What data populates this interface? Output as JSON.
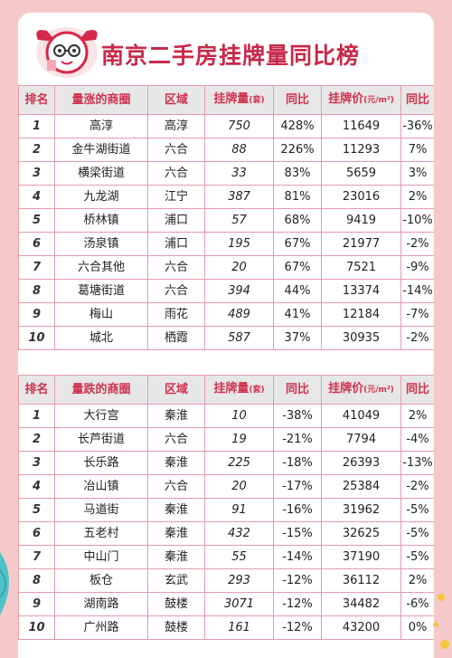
{
  "title": "南京二手房挂牌量同比榜",
  "headers_up": {
    "rank": "排名",
    "area": "量涨的商圈",
    "district": "区域",
    "listings": "挂牌量",
    "listings_unit": "(套)",
    "yoy": "同比",
    "price": "挂牌价",
    "price_unit": "(元/m²)",
    "price_yoy": "同比"
  },
  "headers_down": {
    "rank": "排名",
    "area": "量跌的商圈",
    "district": "区域",
    "listings": "挂牌量",
    "listings_unit": "(套)",
    "yoy": "同比",
    "price": "挂牌价",
    "price_unit": "(元/m²)",
    "price_yoy": "同比"
  },
  "rows_up": [
    [
      "1",
      "高淳",
      "高淳",
      "750",
      "428%",
      "11649",
      "-36%"
    ],
    [
      "2",
      "金牛湖街道",
      "六合",
      "88",
      "226%",
      "11293",
      "7%"
    ],
    [
      "3",
      "横梁街道",
      "六合",
      "33",
      "83%",
      "5659",
      "3%"
    ],
    [
      "4",
      "九龙湖",
      "江宁",
      "387",
      "81%",
      "23016",
      "2%"
    ],
    [
      "5",
      "桥林镇",
      "浦口",
      "57",
      "68%",
      "9419",
      "-10%"
    ],
    [
      "6",
      "汤泉镇",
      "浦口",
      "195",
      "67%",
      "21977",
      "-2%"
    ],
    [
      "7",
      "六合其他",
      "六合",
      "20",
      "67%",
      "7521",
      "-9%"
    ],
    [
      "8",
      "葛塘街道",
      "六合",
      "394",
      "44%",
      "13374",
      "-14%"
    ],
    [
      "9",
      "梅山",
      "雨花",
      "489",
      "41%",
      "12184",
      "-7%"
    ],
    [
      "10",
      "城北",
      "栖霞",
      "587",
      "37%",
      "30935",
      "-2%"
    ]
  ],
  "rows_down": [
    [
      "1",
      "大行宫",
      "秦淮",
      "10",
      "-38%",
      "41049",
      "2%"
    ],
    [
      "2",
      "长芦街道",
      "六合",
      "19",
      "-21%",
      "7794",
      "-4%"
    ],
    [
      "3",
      "长乐路",
      "秦淮",
      "225",
      "-18%",
      "26393",
      "-13%"
    ],
    [
      "4",
      "冶山镇",
      "六合",
      "20",
      "-17%",
      "25384",
      "-2%"
    ],
    [
      "5",
      "马道街",
      "秦淮",
      "91",
      "-16%",
      "31962",
      "-5%"
    ],
    [
      "6",
      "五老村",
      "秦淮",
      "432",
      "-15%",
      "32625",
      "-5%"
    ],
    [
      "7",
      "中山门",
      "秦淮",
      "55",
      "-14%",
      "37190",
      "-5%"
    ],
    [
      "8",
      "板仓",
      "玄武",
      "293",
      "-12%",
      "36112",
      "2%"
    ],
    [
      "9",
      "湖南路",
      "鼓楼",
      "3071",
      "-12%",
      "34482",
      "-6%"
    ],
    [
      "10",
      "广州路",
      "鼓楼",
      "161",
      "-12%",
      "43200",
      "0%"
    ]
  ],
  "colors": {
    "accent": "#c8294a",
    "border": "#e89aa8",
    "header_bg": "#e7e7e7",
    "page_bg": "#f5c9c9"
  },
  "icons": {
    "mascot": "cartoon-mascot-icon"
  }
}
